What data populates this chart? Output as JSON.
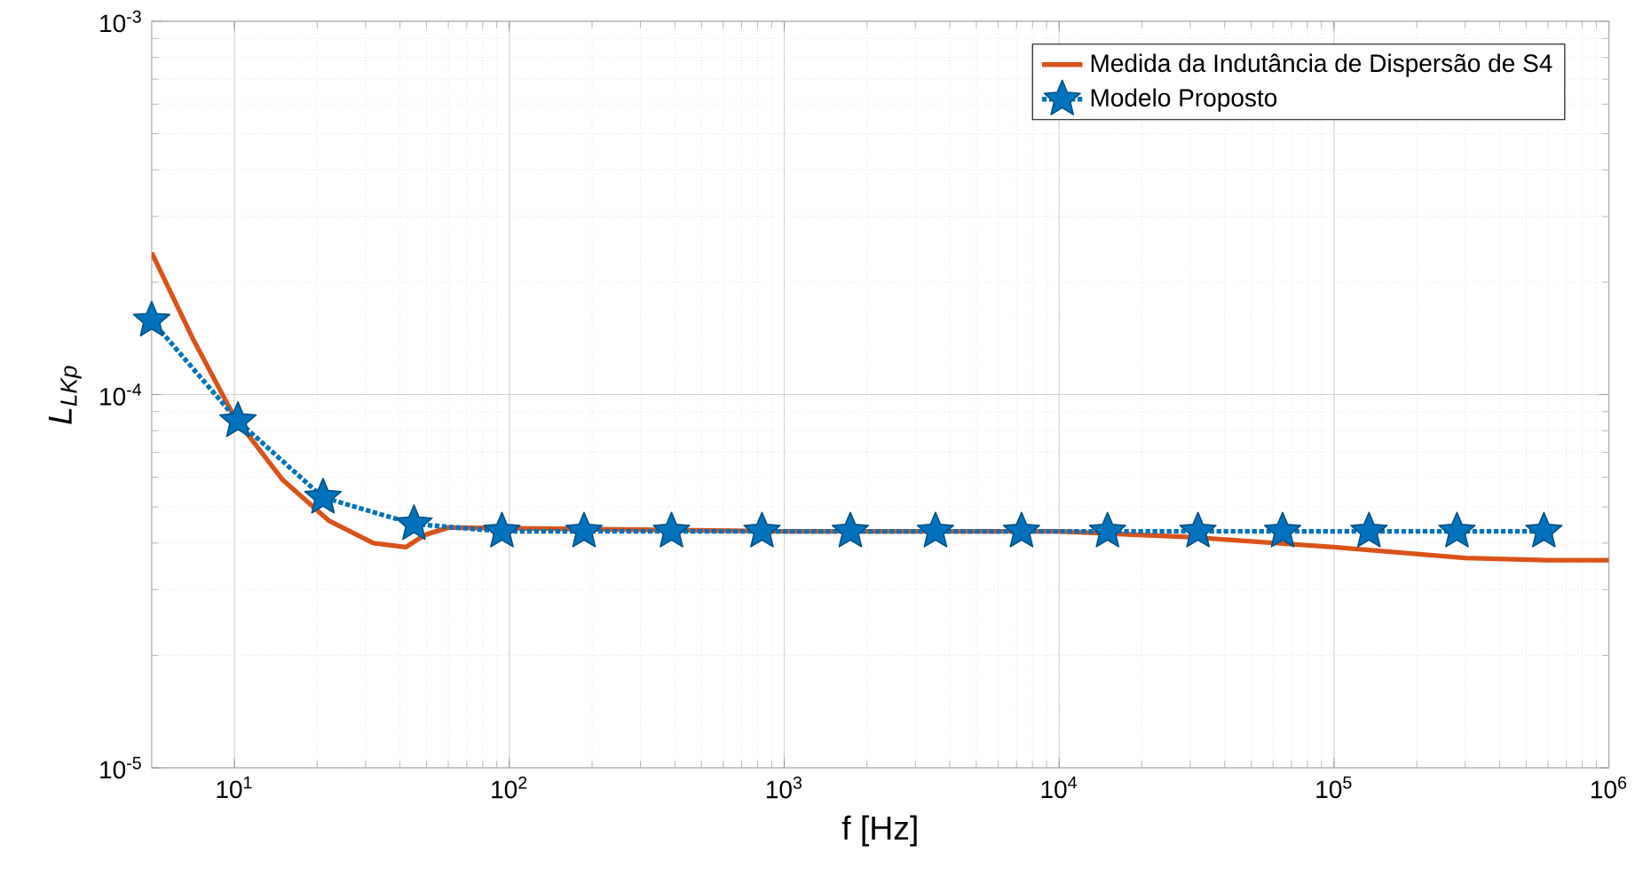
{
  "chart_data": {
    "type": "line",
    "xlabel": "f [Hz]",
    "ylabel": "L$_{LKp}$",
    "log": "xy",
    "grid": true,
    "legend": "top right",
    "xlim": [
      5,
      1000000
    ],
    "ylim": [
      1e-05,
      0.001
    ],
    "xticks": [
      {
        "value": 10,
        "label": "10$^{1}$"
      },
      {
        "value": 100,
        "label": "10$^{2}$"
      },
      {
        "value": 1000,
        "label": "10$^{3}$"
      },
      {
        "value": 10000,
        "label": "10$^{4}$"
      },
      {
        "value": 100000,
        "label": "10$^{5}$"
      },
      {
        "value": 1000000,
        "label": "10$^{6}$"
      }
    ],
    "yticks": [
      {
        "value": 1e-05,
        "label": "10$^{-5}$"
      },
      {
        "value": 0.0001,
        "label": "10$^{-4}$"
      },
      {
        "value": 0.001,
        "label": "10$^{-3}$"
      }
    ],
    "series": [
      {
        "name": "Medida da Indutância de Dispersão de S4",
        "color": "#d95319",
        "marker": "none",
        "line_style": "solid",
        "x": [
          5,
          7.1,
          10,
          15,
          22,
          32,
          42,
          49,
          60,
          1000,
          10000,
          30000,
          100000,
          300000,
          600000,
          1000000
        ],
        "values": [
          0.00024,
          0.00014,
          8.7e-05,
          5.9e-05,
          4.6e-05,
          4e-05,
          3.9e-05,
          4.2e-05,
          4.4e-05,
          4.3e-05,
          4.3e-05,
          4.15e-05,
          3.9e-05,
          3.65e-05,
          3.6e-05,
          3.6e-05
        ]
      },
      {
        "name": "Modelo Proposto",
        "color": "#0072bd",
        "marker": "star",
        "line_style": "dotted",
        "x": [
          5,
          10.3,
          21,
          45,
          94,
          187,
          389,
          830,
          1740,
          3550,
          7300,
          15000,
          32000,
          65000,
          134000,
          280000,
          580000
        ],
        "values": [
          0.000158,
          8.5e-05,
          5.3e-05,
          4.5e-05,
          4.3e-05,
          4.3e-05,
          4.3e-05,
          4.3e-05,
          4.3e-05,
          4.3e-05,
          4.3e-05,
          4.3e-05,
          4.3e-05,
          4.3e-05,
          4.3e-05,
          4.3e-05,
          4.3e-05
        ]
      }
    ]
  }
}
